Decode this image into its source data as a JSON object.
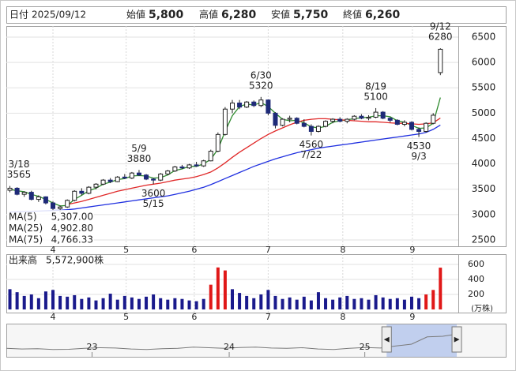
{
  "chart_data": [
    {
      "type": "candlestick",
      "header": {
        "date_label": "日付",
        "date": "2025/09/12",
        "fields": [
          {
            "label": "始値",
            "value": 5800,
            "value_label": "5,800",
            "color": "#000000"
          },
          {
            "label": "高値",
            "value": 6280,
            "value_label": "6,280",
            "color": "#e00000"
          },
          {
            "label": "安値",
            "value": 5750,
            "value_label": "5,750",
            "color": "#008000"
          },
          {
            "label": "終値",
            "value": 6260,
            "value_label": "6,260",
            "color": "#000000"
          }
        ]
      },
      "xlim": [
        -0.5,
        62.5
      ],
      "ylim": [
        2375,
        6718
      ],
      "yticks": [
        2500,
        3000,
        3500,
        4000,
        4500,
        5000,
        5500,
        6000,
        6500
      ],
      "xticks": [
        {
          "value": 6,
          "label": "4"
        },
        {
          "value": 16.2,
          "label": "5"
        },
        {
          "value": 25.7,
          "label": "6"
        },
        {
          "value": 36,
          "label": "7"
        },
        {
          "value": 46.4,
          "label": "8"
        },
        {
          "value": 56.1,
          "label": "9"
        }
      ],
      "grid": true,
      "up_color": "#ffffff",
      "down_color": "#1e2a78",
      "ohlc": [
        [
          3480,
          3565,
          3440,
          3520
        ],
        [
          3520,
          3540,
          3380,
          3400
        ],
        [
          3400,
          3460,
          3350,
          3440
        ],
        [
          3440,
          3470,
          3280,
          3300
        ],
        [
          3300,
          3380,
          3250,
          3350
        ],
        [
          3350,
          3360,
          3200,
          3230
        ],
        [
          3230,
          3260,
          3080,
          3120
        ],
        [
          3120,
          3180,
          3040,
          3150
        ],
        [
          3150,
          3300,
          3130,
          3280
        ],
        [
          3280,
          3480,
          3260,
          3460
        ],
        [
          3460,
          3520,
          3380,
          3420
        ],
        [
          3420,
          3560,
          3400,
          3540
        ],
        [
          3540,
          3620,
          3500,
          3600
        ],
        [
          3600,
          3700,
          3580,
          3680
        ],
        [
          3680,
          3720,
          3620,
          3650
        ],
        [
          3650,
          3760,
          3640,
          3740
        ],
        [
          3740,
          3800,
          3700,
          3720
        ],
        [
          3720,
          3840,
          3700,
          3820
        ],
        [
          3820,
          3880,
          3760,
          3780
        ],
        [
          3780,
          3800,
          3680,
          3700
        ],
        [
          3700,
          3720,
          3600,
          3680
        ],
        [
          3680,
          3820,
          3660,
          3800
        ],
        [
          3800,
          3880,
          3780,
          3860
        ],
        [
          3860,
          3960,
          3840,
          3940
        ],
        [
          3940,
          3980,
          3900,
          3920
        ],
        [
          3920,
          4000,
          3900,
          3980
        ],
        [
          3980,
          4040,
          3940,
          3960
        ],
        [
          3960,
          4080,
          3940,
          4060
        ],
        [
          4060,
          4280,
          4050,
          4250
        ],
        [
          4250,
          4620,
          4230,
          4580
        ],
        [
          4580,
          5120,
          4560,
          5080
        ],
        [
          5080,
          5260,
          5000,
          5200
        ],
        [
          5200,
          5260,
          5080,
          5120
        ],
        [
          5120,
          5240,
          5100,
          5220
        ],
        [
          5220,
          5250,
          5120,
          5150
        ],
        [
          5150,
          5320,
          5120,
          5260
        ],
        [
          5260,
          5270,
          4960,
          5000
        ],
        [
          5000,
          5020,
          4700,
          4760
        ],
        [
          4760,
          4900,
          4740,
          4880
        ],
        [
          4880,
          4950,
          4820,
          4900
        ],
        [
          4900,
          4920,
          4780,
          4800
        ],
        [
          4800,
          4880,
          4720,
          4740
        ],
        [
          4740,
          4780,
          4560,
          4640
        ],
        [
          4640,
          4760,
          4620,
          4740
        ],
        [
          4740,
          4860,
          4720,
          4840
        ],
        [
          4840,
          4900,
          4800,
          4880
        ],
        [
          4880,
          4920,
          4820,
          4840
        ],
        [
          4840,
          4900,
          4800,
          4880
        ],
        [
          4880,
          4960,
          4860,
          4940
        ],
        [
          4940,
          4980,
          4880,
          4900
        ],
        [
          4900,
          4960,
          4860,
          4920
        ],
        [
          4920,
          5100,
          4900,
          5020
        ],
        [
          5020,
          5040,
          4880,
          4900
        ],
        [
          4900,
          4920,
          4820,
          4860
        ],
        [
          4860,
          4880,
          4760,
          4780
        ],
        [
          4780,
          4860,
          4740,
          4820
        ],
        [
          4820,
          4840,
          4660,
          4680
        ],
        [
          4680,
          4720,
          4530,
          4640
        ],
        [
          4640,
          4820,
          4620,
          4800
        ],
        [
          4800,
          5000,
          4780,
          4960
        ],
        [
          5800,
          6280,
          5750,
          6260
        ]
      ],
      "series": [
        {
          "name": "MA(5)",
          "color": "#2e8b2e",
          "legend_value": "5,307.00",
          "values": [
            3500,
            3470,
            3450,
            3400,
            3360,
            3300,
            3230,
            3170,
            3180,
            3300,
            3380,
            3470,
            3520,
            3600,
            3640,
            3690,
            3710,
            3760,
            3770,
            3760,
            3720,
            3730,
            3780,
            3870,
            3900,
            3950,
            3950,
            4000,
            4090,
            4290,
            4640,
            4950,
            5130,
            5180,
            5160,
            5210,
            5130,
            5000,
            4880,
            4850,
            4860,
            4810,
            4730,
            4710,
            4740,
            4820,
            4850,
            4870,
            4890,
            4910,
            4920,
            4950,
            4950,
            4930,
            4850,
            4820,
            4760,
            4700,
            4710,
            4800,
            5307
          ]
        },
        {
          "name": "MA(25)",
          "color": "#e02828",
          "legend_value": "4,902.80",
          "values": [
            null,
            null,
            null,
            null,
            null,
            null,
            null,
            null,
            3200,
            3230,
            3260,
            3300,
            3340,
            3380,
            3420,
            3460,
            3490,
            3520,
            3550,
            3580,
            3600,
            3620,
            3650,
            3680,
            3700,
            3720,
            3750,
            3790,
            3840,
            3920,
            4020,
            4130,
            4230,
            4320,
            4410,
            4500,
            4580,
            4650,
            4710,
            4770,
            4820,
            4860,
            4880,
            4890,
            4890,
            4880,
            4870,
            4860,
            4850,
            4840,
            4830,
            4830,
            4820,
            4810,
            4800,
            4800,
            4790,
            4780,
            4790,
            4810,
            4902.8
          ]
        },
        {
          "name": "MA(75)",
          "color": "#2030e0",
          "legend_value": "4,766.33",
          "values": [
            3050,
            3055,
            3060,
            3065,
            3070,
            3075,
            3080,
            3085,
            3095,
            3110,
            3130,
            3150,
            3170,
            3190,
            3210,
            3230,
            3250,
            3270,
            3290,
            3310,
            3330,
            3350,
            3370,
            3400,
            3430,
            3460,
            3500,
            3540,
            3590,
            3650,
            3710,
            3770,
            3830,
            3890,
            3950,
            4000,
            4050,
            4100,
            4140,
            4180,
            4220,
            4250,
            4280,
            4310,
            4330,
            4350,
            4370,
            4390,
            4410,
            4430,
            4450,
            4470,
            4490,
            4510,
            4530,
            4550,
            4570,
            4590,
            4620,
            4680,
            4766.33
          ]
        }
      ],
      "annotations": [
        {
          "date": "3/18",
          "value": 3565,
          "at": 0,
          "side": "high"
        },
        {
          "date": "5/9",
          "value": 3880,
          "at": 18,
          "side": "high"
        },
        {
          "date": "5/15",
          "value": 3600,
          "at": 20,
          "side": "low"
        },
        {
          "date": "6/30",
          "value": 5320,
          "at": 35,
          "side": "high"
        },
        {
          "date": "7/22",
          "value": 4560,
          "at": 42,
          "side": "low"
        },
        {
          "date": "8/19",
          "value": 5100,
          "at": 51,
          "side": "high"
        },
        {
          "date": "9/3",
          "value": 4530,
          "at": 57,
          "side": "low"
        },
        {
          "date": "9/12",
          "value": 6280,
          "at": 60,
          "side": "high"
        }
      ]
    },
    {
      "type": "bar",
      "title": "出来高",
      "last_label": "5,572,900株",
      "unit": "(万株)",
      "ylim": [
        -42,
        737
      ],
      "yticks": [
        200,
        400,
        600
      ],
      "color": "#1a1a8c",
      "values": [
        270,
        230,
        180,
        200,
        150,
        240,
        260,
        180,
        170,
        190,
        140,
        160,
        120,
        150,
        210,
        130,
        180,
        160,
        140,
        170,
        200,
        150,
        130,
        150,
        140,
        120,
        110,
        140,
        330,
        560,
        520,
        270,
        220,
        180,
        150,
        200,
        260,
        180,
        140,
        160,
        130,
        170,
        120,
        230,
        150,
        130,
        160,
        180,
        140,
        150,
        130,
        190,
        160,
        140,
        150,
        130,
        170,
        150,
        200,
        260,
        557.29
      ],
      "colors": [
        "#1a1a8c",
        "#1a1a8c",
        "#1a1a8c",
        "#1a1a8c",
        "#1a1a8c",
        "#1a1a8c",
        "#1a1a8c",
        "#1a1a8c",
        "#1a1a8c",
        "#1a1a8c",
        "#1a1a8c",
        "#1a1a8c",
        "#1a1a8c",
        "#1a1a8c",
        "#1a1a8c",
        "#1a1a8c",
        "#1a1a8c",
        "#1a1a8c",
        "#1a1a8c",
        "#1a1a8c",
        "#1a1a8c",
        "#1a1a8c",
        "#1a1a8c",
        "#1a1a8c",
        "#1a1a8c",
        "#1a1a8c",
        "#1a1a8c",
        "#1a1a8c",
        "#e01818",
        "#e01818",
        "#e01818",
        "#1a1a8c",
        "#1a1a8c",
        "#1a1a8c",
        "#1a1a8c",
        "#1a1a8c",
        "#1a1a8c",
        "#1a1a8c",
        "#1a1a8c",
        "#1a1a8c",
        "#1a1a8c",
        "#1a1a8c",
        "#1a1a8c",
        "#1a1a8c",
        "#1a1a8c",
        "#1a1a8c",
        "#1a1a8c",
        "#1a1a8c",
        "#1a1a8c",
        "#1a1a8c",
        "#1a1a8c",
        "#1a1a8c",
        "#1a1a8c",
        "#1a1a8c",
        "#1a1a8c",
        "#1a1a8c",
        "#1a1a8c",
        "#1a1a8c",
        "#e01818",
        "#e01818",
        "#e01818"
      ]
    },
    {
      "type": "navigator",
      "color": "#7a7a7a",
      "selection_color": "#9fb5ea",
      "ylim": [
        1500,
        7000
      ],
      "xlim": [
        0,
        29
      ],
      "xticks": [
        {
          "value": 5.5,
          "label": "23"
        },
        {
          "value": 14.3,
          "label": "24"
        },
        {
          "value": 23,
          "label": "25"
        }
      ],
      "selection": [
        24.4,
        28.9
      ],
      "values": [
        2900,
        2800,
        2850,
        2700,
        2750,
        2900,
        3000,
        2950,
        2800,
        2700,
        2850,
        2900,
        3100,
        3000,
        2900,
        3050,
        3100,
        2950,
        2900,
        3000,
        2800,
        2700,
        2900,
        3050,
        2950,
        3300,
        3600,
        4800,
        4900,
        5300
      ]
    }
  ]
}
